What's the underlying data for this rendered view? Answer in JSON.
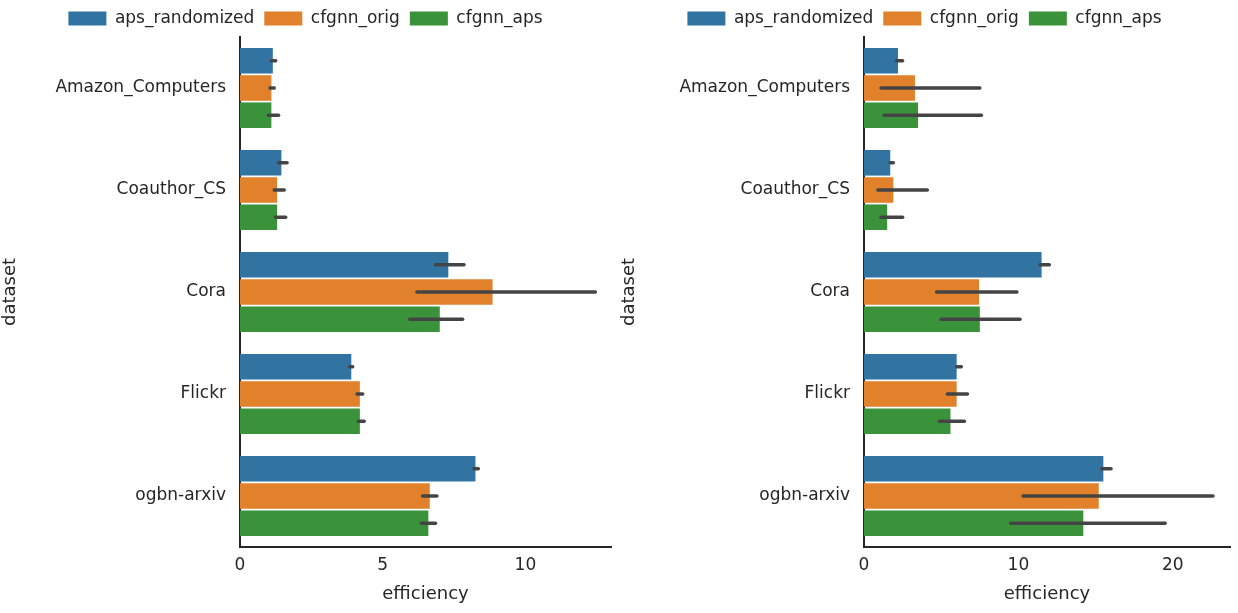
{
  "chart_data": [
    {
      "type": "bar",
      "orientation": "horizontal",
      "categories": [
        "Amazon_Computers",
        "Coauthor_CS",
        "Cora",
        "Flickr",
        "ogbn-arxiv"
      ],
      "xlabel": "efficiency",
      "ylabel": "dataset",
      "xlim": [
        0,
        13
      ],
      "xticks": [
        0,
        5,
        10
      ],
      "grid": false,
      "legend": "top",
      "series": [
        {
          "name": "aps_randomized",
          "color": "#3274a1",
          "values": [
            1.15,
            1.45,
            7.3,
            3.9,
            8.25
          ],
          "errors": [
            [
              1.1,
              1.25
            ],
            [
              1.35,
              1.65
            ],
            [
              6.85,
              7.85
            ],
            [
              3.85,
              3.95
            ],
            [
              8.2,
              8.35
            ]
          ]
        },
        {
          "name": "cfgnn_orig",
          "color": "#e1812c",
          "values": [
            1.1,
            1.3,
            8.85,
            4.2,
            6.65
          ],
          "errors": [
            [
              1.05,
              1.2
            ],
            [
              1.2,
              1.55
            ],
            [
              6.2,
              12.45
            ],
            [
              4.1,
              4.3
            ],
            [
              6.4,
              6.9
            ]
          ]
        },
        {
          "name": "cfgnn_aps",
          "color": "#3a923a",
          "values": [
            1.1,
            1.3,
            7.0,
            4.2,
            6.6
          ],
          "errors": [
            [
              1.0,
              1.35
            ],
            [
              1.25,
              1.6
            ],
            [
              5.95,
              7.8
            ],
            [
              4.15,
              4.35
            ],
            [
              6.35,
              6.85
            ]
          ]
        }
      ]
    },
    {
      "type": "bar",
      "orientation": "horizontal",
      "categories": [
        "Amazon_Computers",
        "Coauthor_CS",
        "Cora",
        "Flickr",
        "ogbn-arxiv"
      ],
      "xlabel": "efficiency",
      "ylabel": "dataset",
      "xlim": [
        0,
        23.7
      ],
      "xticks": [
        0,
        10,
        20
      ],
      "grid": false,
      "legend": "top",
      "series": [
        {
          "name": "aps_randomized",
          "color": "#3274a1",
          "values": [
            2.2,
            1.7,
            11.5,
            6.0,
            15.5
          ],
          "errors": [
            [
              2.1,
              2.5
            ],
            [
              1.7,
              1.9
            ],
            [
              11.4,
              12.0
            ],
            [
              6.0,
              6.3
            ],
            [
              15.4,
              16.0
            ]
          ]
        },
        {
          "name": "cfgnn_orig",
          "color": "#e1812c",
          "values": [
            3.3,
            1.9,
            7.45,
            6.0,
            15.2
          ],
          "errors": [
            [
              1.1,
              7.5
            ],
            [
              0.9,
              4.1
            ],
            [
              4.7,
              9.9
            ],
            [
              5.4,
              6.7
            ],
            [
              10.3,
              22.6
            ]
          ]
        },
        {
          "name": "cfgnn_aps",
          "color": "#3a923a",
          "values": [
            3.5,
            1.5,
            7.5,
            5.6,
            14.2
          ],
          "errors": [
            [
              1.3,
              7.6
            ],
            [
              1.1,
              2.5
            ],
            [
              5.0,
              10.1
            ],
            [
              4.9,
              6.5
            ],
            [
              9.5,
              19.5
            ]
          ]
        }
      ]
    }
  ]
}
